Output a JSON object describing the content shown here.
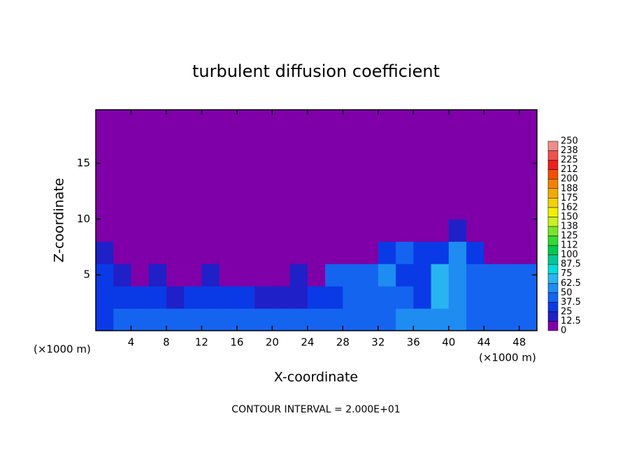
{
  "chart_data": {
    "type": "heatmap",
    "title": "turbulent diffusion coefficient",
    "x_label": "X-coordinate",
    "y_label": "Z-coordinate",
    "x_unit": "(×1000 m)",
    "y_unit": "(×1000 m)",
    "footnote": "CONTOUR INTERVAL = 2.000E+01",
    "x": [
      1,
      3,
      5,
      7,
      9,
      11,
      13,
      15,
      17,
      19,
      21,
      23,
      25,
      27,
      29,
      31,
      33,
      35,
      37,
      39,
      41,
      43,
      45,
      47,
      49
    ],
    "y": [
      1,
      3,
      5,
      7,
      9,
      11,
      13,
      15,
      17,
      19
    ],
    "values": [
      [
        35,
        40,
        38,
        42,
        40,
        38,
        45,
        40,
        42,
        38,
        44,
        46,
        42,
        44,
        40,
        42,
        48,
        50,
        52,
        58,
        62,
        48,
        45,
        42,
        45
      ],
      [
        30,
        35,
        28,
        25,
        22,
        30,
        35,
        32,
        28,
        20,
        18,
        22,
        25,
        30,
        38,
        42,
        45,
        40,
        35,
        65,
        55,
        40,
        38,
        42,
        40
      ],
      [
        25,
        20,
        12,
        15,
        8,
        10,
        20,
        12,
        8,
        5,
        5,
        15,
        10,
        38,
        45,
        48,
        50,
        35,
        30,
        70,
        60,
        42,
        40,
        38,
        40
      ],
      [
        22,
        8,
        5,
        5,
        5,
        5,
        5,
        5,
        5,
        5,
        5,
        5,
        5,
        5,
        5,
        5,
        30,
        40,
        35,
        30,
        55,
        30,
        8,
        8,
        8
      ],
      [
        3,
        3,
        3,
        3,
        3,
        3,
        3,
        3,
        3,
        3,
        3,
        3,
        3,
        3,
        3,
        3,
        3,
        3,
        3,
        3,
        15,
        10,
        3,
        3,
        3
      ],
      [
        2,
        2,
        2,
        2,
        2,
        2,
        2,
        2,
        2,
        2,
        2,
        2,
        2,
        2,
        2,
        2,
        2,
        2,
        2,
        2,
        2,
        2,
        2,
        2,
        2
      ],
      [
        2,
        2,
        2,
        2,
        2,
        2,
        2,
        2,
        2,
        2,
        2,
        2,
        2,
        2,
        2,
        2,
        2,
        2,
        2,
        2,
        2,
        2,
        2,
        2,
        2
      ],
      [
        2,
        2,
        2,
        2,
        2,
        2,
        2,
        2,
        2,
        2,
        2,
        2,
        2,
        2,
        2,
        2,
        2,
        2,
        2,
        2,
        2,
        2,
        2,
        2,
        2
      ],
      [
        2,
        2,
        2,
        2,
        2,
        2,
        2,
        2,
        2,
        2,
        2,
        2,
        2,
        2,
        2,
        2,
        2,
        2,
        2,
        2,
        2,
        2,
        2,
        2,
        2
      ],
      [
        2,
        2,
        2,
        2,
        2,
        2,
        2,
        2,
        2,
        2,
        2,
        2,
        2,
        2,
        2,
        2,
        2,
        2,
        2,
        2,
        2,
        2,
        2,
        2,
        2
      ]
    ],
    "cell_width": 2,
    "cell_height": 2,
    "xlim": [
      0,
      50
    ],
    "ylim": [
      0,
      19.8
    ],
    "xticks": [
      4,
      8,
      12,
      16,
      20,
      24,
      28,
      32,
      36,
      40,
      44,
      48
    ],
    "yticks": [
      5,
      10,
      15
    ],
    "levels": [
      0,
      12.5,
      25,
      37.5,
      50,
      62.5,
      75,
      87.5,
      100,
      112,
      125,
      138,
      150,
      162,
      175,
      188,
      200,
      212,
      225,
      238,
      250
    ],
    "colors": [
      "#7f00a8",
      "#2020c8",
      "#0a3ae6",
      "#1464f0",
      "#1e8cf0",
      "#28b4f0",
      "#00dcdc",
      "#00c896",
      "#00c850",
      "#32dc32",
      "#78e628",
      "#c8f01e",
      "#f0f000",
      "#f0d200",
      "#f0aa00",
      "#f08200",
      "#f05000",
      "#f01e1e",
      "#f05050",
      "#f08c8c"
    ]
  }
}
